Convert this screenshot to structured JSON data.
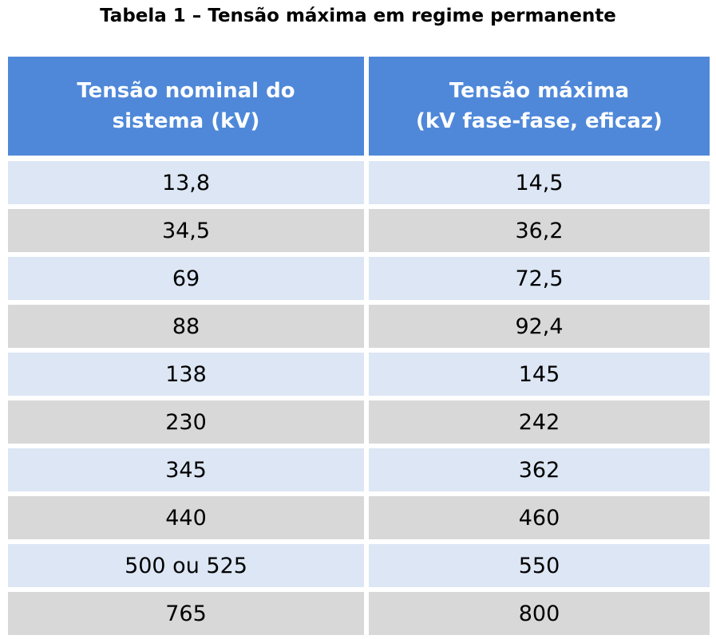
{
  "title": "Tabela 1 – Tensão máxima em regime permanente",
  "colors": {
    "header_bg": "#4f88d9",
    "header_text": "#ffffff",
    "row_light": "#dce6f4",
    "row_dark": "#d8d8d8"
  },
  "table": {
    "headers": [
      {
        "line1": "Tensão nominal do",
        "line2": "sistema (kV)"
      },
      {
        "line1": "Tensão máxima",
        "line2": "(kV fase-fase, eficaz)"
      }
    ],
    "rows": [
      [
        "13,8",
        "14,5"
      ],
      [
        "34,5",
        "36,2"
      ],
      [
        "69",
        "72,5"
      ],
      [
        "88",
        "92,4"
      ],
      [
        "138",
        "145"
      ],
      [
        "230",
        "242"
      ],
      [
        "345",
        "362"
      ],
      [
        "440",
        "460"
      ],
      [
        "500 ou 525",
        "550"
      ],
      [
        "765",
        "800"
      ]
    ]
  }
}
